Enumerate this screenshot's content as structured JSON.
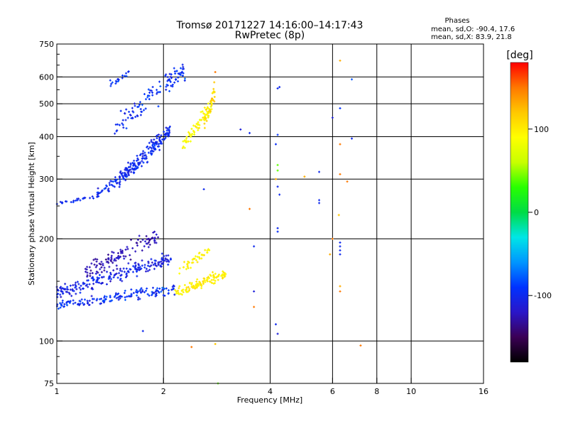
{
  "chart_data": {
    "type": "scatter",
    "title": "Tromsø 20171227 14:16:00–14:17:43",
    "subtitle": "RwPretec (8p)",
    "xlabel": "Frequency [MHz]",
    "ylabel": "Stationary phase Virtual Height [km]",
    "x_scale": "log",
    "y_scale": "log",
    "xlim": [
      1,
      16
    ],
    "ylim": [
      75,
      750
    ],
    "x_ticks": [
      1,
      2,
      4,
      6,
      8,
      10,
      16
    ],
    "x_tick_labels": [
      "1",
      "2",
      "4",
      "6",
      "8",
      "10",
      "16"
    ],
    "x_gridlines": [
      2,
      4,
      6,
      8,
      10
    ],
    "y_ticks": [
      75,
      100,
      200,
      300,
      400,
      500,
      600,
      750
    ],
    "y_tick_labels": [
      "75",
      "100",
      "200",
      "300",
      "400",
      "500",
      "600",
      "750"
    ],
    "y_gridlines": [
      100,
      200,
      300,
      400,
      500,
      600
    ],
    "grid": true,
    "phase_box": {
      "header": "Phases",
      "line_o": "mean, sd,O: -90.4, 17.6",
      "line_x": "mean, sd,X:  83.9, 21.8"
    },
    "colorbar": {
      "label": "[deg]",
      "range": [
        -180,
        180
      ],
      "ticks": [
        100,
        0,
        -100
      ],
      "tick_labels": [
        "100",
        "0",
        "-100"
      ],
      "colors": [
        "#000000",
        "#3b0055",
        "#2a16c8",
        "#0032ff",
        "#0096ff",
        "#00e6e6",
        "#00dc46",
        "#28ff00",
        "#c8ff00",
        "#ffff00",
        "#ffc800",
        "#ff7800",
        "#ff0000"
      ]
    },
    "clusters": [
      {
        "name": "o-F-upper",
        "f": [
          1.0,
          2.1
        ],
        "h": [
          250,
          420
        ],
        "phase": -100,
        "spread": 22
      },
      {
        "name": "o-F-top",
        "f": [
          1.45,
          2.5
        ],
        "h": [
          380,
          640
        ],
        "phase": -95,
        "spread": 25
      },
      {
        "name": "x-F",
        "f": [
          2.25,
          2.75
        ],
        "h": [
          360,
          510
        ],
        "phase": 92,
        "spread": 25
      },
      {
        "name": "o-E-low",
        "f": [
          1.0,
          2.2
        ],
        "h": [
          125,
          170
        ],
        "phase": -95,
        "spread": 30
      },
      {
        "name": "o-E-mid",
        "f": [
          1.05,
          1.95
        ],
        "h": [
          150,
          210
        ],
        "phase": -125,
        "spread": 20
      },
      {
        "name": "x-E",
        "f": [
          2.15,
          3.0
        ],
        "h": [
          138,
          185
        ],
        "phase": 100,
        "spread": 20
      }
    ],
    "sparse_points": [
      {
        "f": 4.2,
        "h": 555,
        "phase": -100
      },
      {
        "f": 4.25,
        "h": 560,
        "phase": -100
      },
      {
        "f": 4.2,
        "h": 405,
        "phase": -90
      },
      {
        "f": 4.15,
        "h": 380,
        "phase": -95
      },
      {
        "f": 4.2,
        "h": 330,
        "phase": 40
      },
      {
        "f": 4.2,
        "h": 318,
        "phase": 40
      },
      {
        "f": 4.15,
        "h": 300,
        "phase": 130
      },
      {
        "f": 4.2,
        "h": 285,
        "phase": -100
      },
      {
        "f": 4.25,
        "h": 270,
        "phase": -100
      },
      {
        "f": 4.2,
        "h": 215,
        "phase": -100
      },
      {
        "f": 4.2,
        "h": 210,
        "phase": -95
      },
      {
        "f": 4.15,
        "h": 112,
        "phase": -100
      },
      {
        "f": 4.2,
        "h": 105,
        "phase": -110
      },
      {
        "f": 5.0,
        "h": 305,
        "phase": 130
      },
      {
        "f": 5.5,
        "h": 315,
        "phase": -100
      },
      {
        "f": 5.5,
        "h": 260,
        "phase": -100
      },
      {
        "f": 5.5,
        "h": 255,
        "phase": -100
      },
      {
        "f": 6.0,
        "h": 455,
        "phase": -110
      },
      {
        "f": 6.0,
        "h": 200,
        "phase": 150
      },
      {
        "f": 5.9,
        "h": 180,
        "phase": 130
      },
      {
        "f": 6.3,
        "h": 670,
        "phase": 130
      },
      {
        "f": 6.3,
        "h": 485,
        "phase": -90
      },
      {
        "f": 6.3,
        "h": 380,
        "phase": 150
      },
      {
        "f": 6.3,
        "h": 310,
        "phase": 150
      },
      {
        "f": 6.25,
        "h": 235,
        "phase": 120
      },
      {
        "f": 6.3,
        "h": 195,
        "phase": -100
      },
      {
        "f": 6.3,
        "h": 190,
        "phase": -100
      },
      {
        "f": 6.3,
        "h": 185,
        "phase": -100
      },
      {
        "f": 6.3,
        "h": 180,
        "phase": -100
      },
      {
        "f": 6.3,
        "h": 145,
        "phase": 130
      },
      {
        "f": 6.3,
        "h": 140,
        "phase": 150
      },
      {
        "f": 6.6,
        "h": 295,
        "phase": 150
      },
      {
        "f": 6.8,
        "h": 590,
        "phase": -80
      },
      {
        "f": 6.8,
        "h": 395,
        "phase": -100
      },
      {
        "f": 7.2,
        "h": 97,
        "phase": 150
      },
      {
        "f": 3.3,
        "h": 420,
        "phase": -110
      },
      {
        "f": 3.5,
        "h": 410,
        "phase": -100
      },
      {
        "f": 3.5,
        "h": 245,
        "phase": 150
      },
      {
        "f": 3.6,
        "h": 190,
        "phase": -100
      },
      {
        "f": 3.6,
        "h": 140,
        "phase": -110
      },
      {
        "f": 3.6,
        "h": 126,
        "phase": 150
      },
      {
        "f": 2.8,
        "h": 620,
        "phase": 150
      },
      {
        "f": 2.6,
        "h": 280,
        "phase": -100
      },
      {
        "f": 2.4,
        "h": 96,
        "phase": 150
      },
      {
        "f": 1.75,
        "h": 107,
        "phase": -100
      },
      {
        "f": 2.85,
        "h": 75,
        "phase": 40
      },
      {
        "f": 2.8,
        "h": 98,
        "phase": 120
      }
    ]
  }
}
